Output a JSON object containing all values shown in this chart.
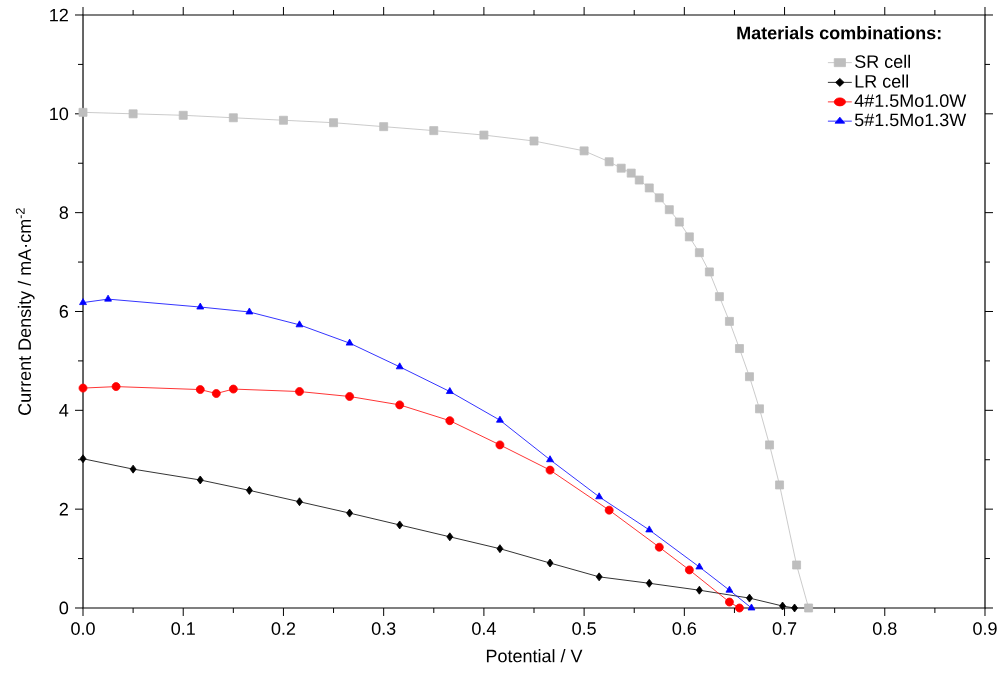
{
  "chart_data": {
    "type": "line",
    "xlabel": "Potential  / V",
    "ylabel": "Current Density / mA·cm$^{-2}$",
    "legend_title": "Materials combinations:",
    "legend": "top right",
    "xlim": [
      0,
      0.9
    ],
    "ylim": [
      0,
      12
    ],
    "xticks": [
      {
        "value": 0,
        "label": "0.0"
      },
      0.1,
      0.2,
      0.3,
      0.4,
      0.5,
      0.6,
      0.7,
      0.8,
      0.9
    ],
    "yticks": [
      0,
      2,
      4,
      6,
      8,
      10,
      12
    ],
    "grid": false,
    "series": [
      {
        "name": "SR cell",
        "color": "#bebebe",
        "marker": "square",
        "x": [
          0,
          0.05,
          0.1,
          0.15,
          0.2,
          0.25,
          0.3,
          0.35,
          0.4,
          0.45,
          0.5,
          0.525,
          0.537,
          0.547,
          0.555,
          0.565,
          0.575,
          0.585,
          0.595,
          0.605,
          0.615,
          0.625,
          0.635,
          0.645,
          0.655,
          0.665,
          0.675,
          0.685,
          0.695,
          0.712,
          0.724
        ],
        "values": [
          10.03,
          10.0,
          9.97,
          9.92,
          9.87,
          9.82,
          9.74,
          9.66,
          9.57,
          9.45,
          9.25,
          9.03,
          8.9,
          8.8,
          8.66,
          8.5,
          8.3,
          8.06,
          7.81,
          7.51,
          7.19,
          6.8,
          6.3,
          5.8,
          5.25,
          4.68,
          4.03,
          3.3,
          2.49,
          0.87,
          0
        ]
      },
      {
        "name": "LR cell",
        "color": "#000000",
        "marker": "diamond",
        "x": [
          0,
          0.05,
          0.117,
          0.166,
          0.216,
          0.266,
          0.316,
          0.366,
          0.416,
          0.466,
          0.515,
          0.565,
          0.615,
          0.665,
          0.698,
          0.71
        ],
        "values": [
          3.02,
          2.81,
          2.59,
          2.38,
          2.15,
          1.92,
          1.68,
          1.44,
          1.2,
          0.91,
          0.63,
          0.5,
          0.36,
          0.2,
          0.04,
          0
        ]
      },
      {
        "name": "4#1.5Mo1.0W",
        "color": "#ff0000",
        "marker": "circle",
        "x": [
          0,
          0.033,
          0.117,
          0.133,
          0.15,
          0.216,
          0.266,
          0.316,
          0.366,
          0.416,
          0.466,
          0.525,
          0.575,
          0.605,
          0.645,
          0.655
        ],
        "values": [
          4.45,
          4.48,
          4.42,
          4.34,
          4.43,
          4.38,
          4.28,
          4.11,
          3.79,
          3.3,
          2.79,
          1.98,
          1.23,
          0.77,
          0.12,
          0
        ]
      },
      {
        "name": "5#1.5Mo1.3W",
        "color": "#0000ff",
        "marker": "triangle",
        "x": [
          0,
          0.025,
          0.117,
          0.166,
          0.216,
          0.266,
          0.316,
          0.366,
          0.416,
          0.466,
          0.515,
          0.565,
          0.615,
          0.645,
          0.667
        ],
        "values": [
          6.18,
          6.25,
          6.09,
          5.99,
          5.73,
          5.36,
          4.88,
          4.38,
          3.8,
          3.0,
          2.25,
          1.58,
          0.83,
          0.36,
          0
        ]
      }
    ]
  }
}
